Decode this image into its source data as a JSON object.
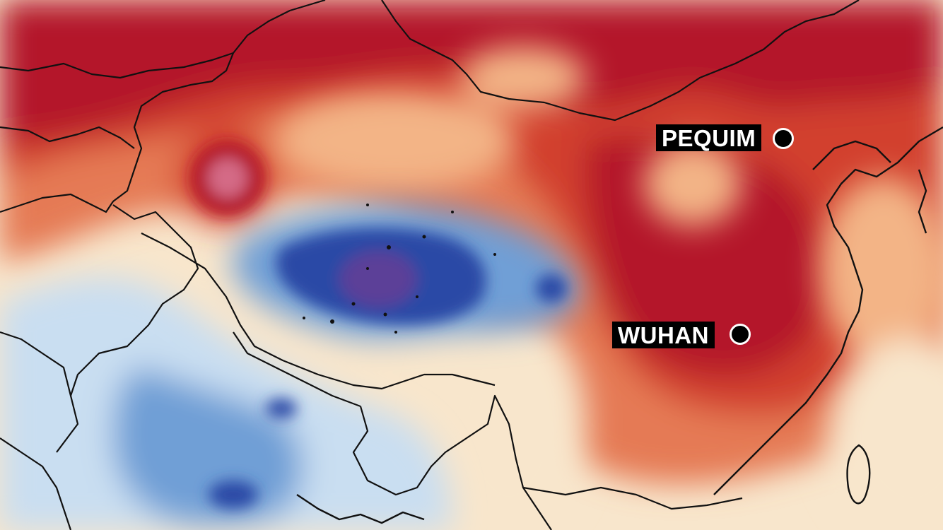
{
  "map": {
    "colors": {
      "heat_deep": "#b4182c",
      "heat": "#d2412f",
      "heat_mid": "#e57a55",
      "heat_light": "#f3b486",
      "neutral": "#f8e6cc",
      "cold_light": "#c9def1",
      "cold": "#6f9fd6",
      "cold_deep": "#2a48a6",
      "cold_core": "#5b3f98",
      "border": "#111111"
    },
    "cities": [
      {
        "id": "beijing",
        "label": "PEQUIM"
      },
      {
        "id": "wuhan",
        "label": "WUHAN"
      }
    ]
  }
}
